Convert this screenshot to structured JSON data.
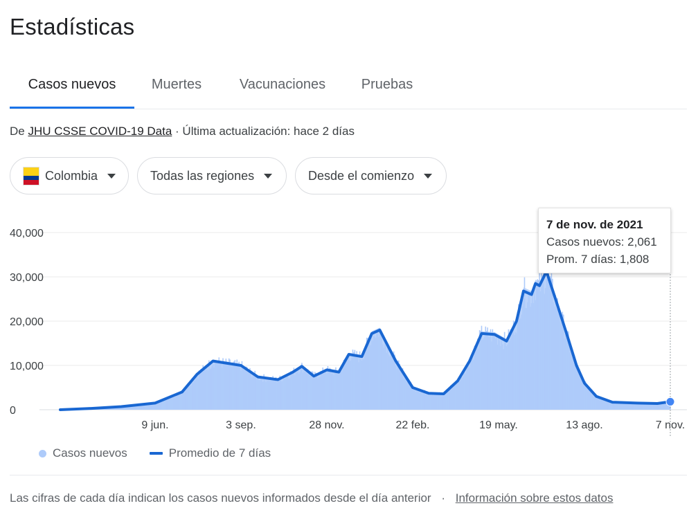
{
  "page": {
    "title": "Estadísticas"
  },
  "tabs": [
    {
      "label": "Casos nuevos"
    },
    {
      "label": "Muertes"
    },
    {
      "label": "Vacunaciones"
    },
    {
      "label": "Pruebas"
    }
  ],
  "source": {
    "prefix": "De",
    "link": "JHU CSSE COVID-19 Data",
    "updated": "· Última actualización: hace 2 días"
  },
  "filters": {
    "country": "Colombia",
    "region": "Todas las regiones",
    "period": "Desde el comienzo"
  },
  "tooltip": {
    "date": "7 de nov. de 2021",
    "cases": "Casos nuevos: 2,061",
    "avg": "Prom. 7 días: 1,808"
  },
  "legend": {
    "cases": "Casos nuevos",
    "avg": "Promedio de 7 días"
  },
  "footer": {
    "text": "Las cifras de cada día indican los casos nuevos informados desde el día anterior",
    "separator": "·",
    "link": "Información sobre estos datos"
  },
  "colors": {
    "accent": "#1a73e8",
    "line": "#1967d2",
    "bars": "#aecbfa"
  },
  "chart_data": {
    "type": "area",
    "series": [
      {
        "name": "Casos nuevos",
        "kind": "daily bars"
      },
      {
        "name": "Promedio de 7 días",
        "kind": "line"
      }
    ],
    "ylim": [
      0,
      40000
    ],
    "yticks": [
      0,
      10000,
      20000,
      30000,
      40000
    ],
    "ytick_labels": [
      "0",
      "10,000",
      "20,000",
      "30,000",
      "40,000"
    ],
    "x": [
      "2020-03-06",
      "2020-04-06",
      "2020-05-06",
      "2020-06-09",
      "2020-07-06",
      "2020-07-21",
      "2020-08-06",
      "2020-09-03",
      "2020-09-20",
      "2020-10-10",
      "2020-10-25",
      "2020-11-03",
      "2020-11-15",
      "2020-11-28",
      "2020-12-10",
      "2020-12-20",
      "2021-01-02",
      "2021-01-12",
      "2021-01-20",
      "2021-02-05",
      "2021-02-22",
      "2021-03-10",
      "2021-03-25",
      "2021-04-08",
      "2021-04-20",
      "2021-05-02",
      "2021-05-15",
      "2021-05-27",
      "2021-06-06",
      "2021-06-13",
      "2021-06-21",
      "2021-06-25",
      "2021-06-29",
      "2021-07-06",
      "2021-07-15",
      "2021-07-25",
      "2021-08-05",
      "2021-08-13",
      "2021-08-25",
      "2021-09-10",
      "2021-10-05",
      "2021-10-25",
      "2021-11-07"
    ],
    "avg_values": [
      0,
      300,
      700,
      1500,
      4000,
      8000,
      11000,
      10000,
      7400,
      6800,
      8500,
      9800,
      7600,
      9000,
      8500,
      12500,
      12000,
      17200,
      18000,
      11000,
      5000,
      3700,
      3600,
      6500,
      11000,
      17200,
      17000,
      15500,
      20000,
      26800,
      26000,
      28500,
      28000,
      31200,
      25000,
      18000,
      10000,
      6000,
      3000,
      1700,
      1500,
      1400,
      1808
    ],
    "xtick_labels": [
      {
        "date": "2020-06-09",
        "label": "9 jun."
      },
      {
        "date": "2020-09-03",
        "label": "3 sep."
      },
      {
        "date": "2020-11-28",
        "label": "28 nov."
      },
      {
        "date": "2021-02-22",
        "label": "22 feb."
      },
      {
        "date": "2021-05-19",
        "label": "19 may."
      },
      {
        "date": "2021-08-13",
        "label": "13 ago."
      },
      {
        "date": "2021-11-07",
        "label": "7 nov."
      }
    ],
    "highlight": {
      "date": "2021-11-07",
      "cases": 2061,
      "avg": 1808
    },
    "grid": true,
    "legend_position": "bottom-left"
  }
}
